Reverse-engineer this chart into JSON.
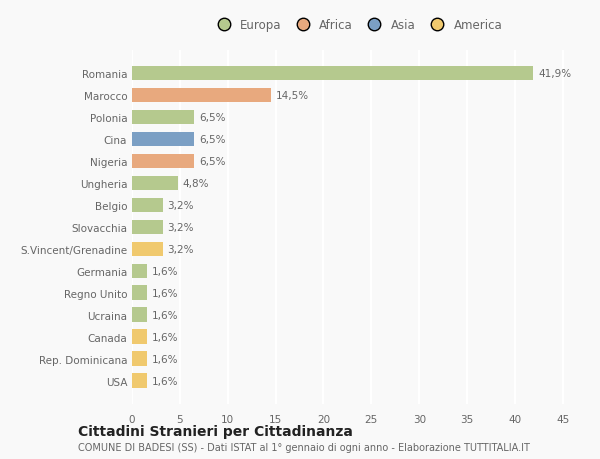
{
  "categories": [
    "Romania",
    "Marocco",
    "Polonia",
    "Cina",
    "Nigeria",
    "Ungheria",
    "Belgio",
    "Slovacchia",
    "S.Vincent/Grenadine",
    "Germania",
    "Regno Unito",
    "Ucraina",
    "Canada",
    "Rep. Dominicana",
    "USA"
  ],
  "values": [
    41.9,
    14.5,
    6.5,
    6.5,
    6.5,
    4.8,
    3.2,
    3.2,
    3.2,
    1.6,
    1.6,
    1.6,
    1.6,
    1.6,
    1.6
  ],
  "labels": [
    "41,9%",
    "14,5%",
    "6,5%",
    "6,5%",
    "6,5%",
    "4,8%",
    "3,2%",
    "3,2%",
    "3,2%",
    "1,6%",
    "1,6%",
    "1,6%",
    "1,6%",
    "1,6%",
    "1,6%"
  ],
  "colors": [
    "#b5c98e",
    "#e8a97e",
    "#b5c98e",
    "#7b9fc4",
    "#e8a97e",
    "#b5c98e",
    "#b5c98e",
    "#b5c98e",
    "#f0c96e",
    "#b5c98e",
    "#b5c98e",
    "#b5c98e",
    "#f0c96e",
    "#f0c96e",
    "#f0c96e"
  ],
  "legend_labels": [
    "Europa",
    "Africa",
    "Asia",
    "America"
  ],
  "legend_colors": [
    "#b5c98e",
    "#e8a97e",
    "#7b9fc4",
    "#f0c96e"
  ],
  "xlim": [
    0,
    47
  ],
  "xticks": [
    0,
    5,
    10,
    15,
    20,
    25,
    30,
    35,
    40,
    45
  ],
  "title": "Cittadini Stranieri per Cittadinanza",
  "subtitle": "COMUNE DI BADESI (SS) - Dati ISTAT al 1° gennaio di ogni anno - Elaborazione TUTTITALIA.IT",
  "background_color": "#f9f9f9",
  "grid_color": "#ffffff",
  "text_color": "#666666",
  "label_fontsize": 7.5,
  "tick_fontsize": 7.5,
  "title_fontsize": 10,
  "subtitle_fontsize": 7
}
